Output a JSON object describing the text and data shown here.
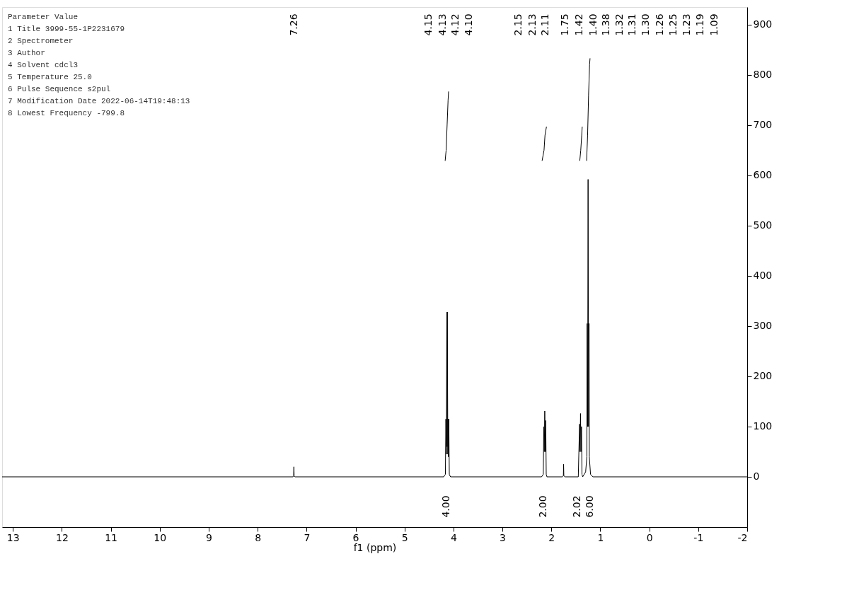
{
  "chart_data": {
    "type": "line",
    "xlabel": "f1 (ppm)",
    "xlim": [
      13.22,
      -2
    ],
    "ylim": [
      -100,
      935
    ],
    "xticks": [
      13,
      12,
      11,
      10,
      9,
      8,
      7,
      6,
      5,
      4,
      3,
      2,
      1,
      0,
      -1,
      -2
    ],
    "yticks": [
      0,
      100,
      200,
      300,
      400,
      500,
      600,
      700,
      800,
      900
    ],
    "grid": false,
    "marker": "none",
    "line_style": "solid",
    "series": [
      {
        "color": "#000000",
        "x": [
          13.22,
          7.28,
          7.265,
          7.26,
          7.255,
          7.24,
          4.2,
          4.165,
          4.155,
          4.145,
          4.135,
          4.13,
          4.125,
          4.115,
          4.11,
          4.105,
          4.095,
          4.085,
          4.06,
          2.2,
          2.165,
          2.155,
          2.145,
          2.135,
          2.125,
          2.115,
          2.105,
          2.09,
          1.78,
          1.755,
          1.75,
          1.745,
          1.72,
          1.45,
          1.425,
          1.415,
          1.405,
          1.395,
          1.385,
          1.375,
          1.36,
          1.3,
          1.275,
          1.27,
          1.26,
          1.25,
          1.24,
          1.23,
          1.225,
          1.2,
          1.15,
          -2
        ],
        "values": [
          0,
          0,
          2,
          20,
          2,
          0,
          0,
          5,
          115,
          45,
          328,
          60,
          328,
          45,
          115,
          40,
          115,
          5,
          0,
          0,
          5,
          100,
          50,
          131,
          50,
          112,
          5,
          0,
          0,
          2,
          25,
          2,
          0,
          0,
          105,
          50,
          126,
          50,
          100,
          5,
          0,
          10,
          40,
          305,
          100,
          592,
          100,
          305,
          40,
          5,
          0,
          0
        ]
      },
      {
        "color": "#000000",
        "x": [
          4.17,
          4.15,
          4.13,
          4.11,
          4.1
        ],
        "values": [
          629,
          650,
          700,
          750,
          767
        ]
      },
      {
        "color": "#000000",
        "x": [
          2.19,
          2.15,
          2.13,
          2.1
        ],
        "values": [
          629,
          650,
          680,
          697
        ]
      },
      {
        "color": "#000000",
        "x": [
          1.42,
          1.4,
          1.38,
          1.37
        ],
        "values": [
          629,
          650,
          680,
          697
        ]
      },
      {
        "color": "#000000",
        "x": [
          1.28,
          1.26,
          1.24,
          1.22,
          1.21
        ],
        "values": [
          629,
          680,
          760,
          820,
          833
        ]
      }
    ],
    "annotations": [
      "Parameter Value",
      "1 Title 3999-55-1P2231679",
      "2 Spectrometer",
      "3 Author",
      "4 Solvent cdcl3",
      "5 Temperature 25.0",
      "6 Pulse Sequence s2pul",
      "7 Modification Date 2022-06-14T19:48:13",
      "8 Lowest Frequency -799.8",
      "7.26",
      "4.15",
      "4.13",
      "4.12",
      "4.10",
      "2.15",
      "2.13",
      "2.11",
      "1.75",
      "1.42",
      "1.40",
      "1.38",
      "1.32",
      "1.31",
      "1.30",
      "1.26",
      "1.25",
      "1.23",
      "1.19",
      "1.09",
      "4.00",
      "2.00",
      "2.02",
      "6.00"
    ]
  }
}
